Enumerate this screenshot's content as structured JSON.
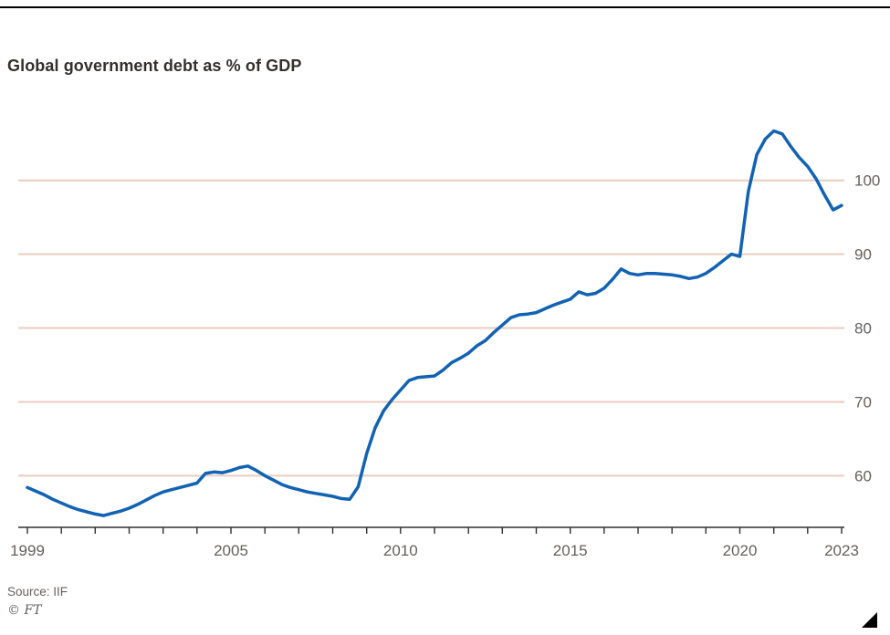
{
  "chart_data": {
    "type": "line",
    "title": "Global government debt as % of GDP",
    "xlabel": "",
    "ylabel": "",
    "xlim": [
      1999,
      2023
    ],
    "ylim": [
      53,
      108
    ],
    "yticks": [
      60,
      70,
      80,
      90,
      100
    ],
    "xticks_labeled": [
      1999,
      2005,
      2010,
      2015,
      2020,
      2023
    ],
    "xticks_minor_every_years": 1,
    "grid": "horizontal",
    "legend_position": "none",
    "series": [
      {
        "name": "Global government debt as % of GDP",
        "color": "#1262b3",
        "points": [
          [
            1999.0,
            58.4
          ],
          [
            1999.25,
            57.9
          ],
          [
            1999.5,
            57.4
          ],
          [
            1999.75,
            56.8
          ],
          [
            2000.0,
            56.3
          ],
          [
            2000.25,
            55.8
          ],
          [
            2000.5,
            55.4
          ],
          [
            2000.75,
            55.1
          ],
          [
            2001.0,
            54.8
          ],
          [
            2001.25,
            54.6
          ],
          [
            2001.5,
            54.9
          ],
          [
            2001.75,
            55.2
          ],
          [
            2002.0,
            55.6
          ],
          [
            2002.25,
            56.1
          ],
          [
            2002.5,
            56.7
          ],
          [
            2002.75,
            57.3
          ],
          [
            2003.0,
            57.8
          ],
          [
            2003.25,
            58.1
          ],
          [
            2003.5,
            58.4
          ],
          [
            2003.75,
            58.7
          ],
          [
            2004.0,
            59.0
          ],
          [
            2004.25,
            60.3
          ],
          [
            2004.5,
            60.5
          ],
          [
            2004.75,
            60.4
          ],
          [
            2005.0,
            60.7
          ],
          [
            2005.25,
            61.1
          ],
          [
            2005.5,
            61.3
          ],
          [
            2005.75,
            60.7
          ],
          [
            2006.0,
            60.0
          ],
          [
            2006.25,
            59.4
          ],
          [
            2006.5,
            58.8
          ],
          [
            2006.75,
            58.4
          ],
          [
            2007.0,
            58.1
          ],
          [
            2007.25,
            57.8
          ],
          [
            2007.5,
            57.6
          ],
          [
            2007.75,
            57.4
          ],
          [
            2008.0,
            57.2
          ],
          [
            2008.25,
            56.9
          ],
          [
            2008.5,
            56.8
          ],
          [
            2008.75,
            58.5
          ],
          [
            2009.0,
            63.0
          ],
          [
            2009.25,
            66.5
          ],
          [
            2009.5,
            68.8
          ],
          [
            2009.75,
            70.3
          ],
          [
            2010.0,
            71.6
          ],
          [
            2010.25,
            72.9
          ],
          [
            2010.5,
            73.3
          ],
          [
            2010.75,
            73.4
          ],
          [
            2011.0,
            73.5
          ],
          [
            2011.25,
            74.3
          ],
          [
            2011.5,
            75.3
          ],
          [
            2011.75,
            75.9
          ],
          [
            2012.0,
            76.6
          ],
          [
            2012.25,
            77.6
          ],
          [
            2012.5,
            78.3
          ],
          [
            2012.75,
            79.4
          ],
          [
            2013.0,
            80.4
          ],
          [
            2013.25,
            81.4
          ],
          [
            2013.5,
            81.8
          ],
          [
            2013.75,
            81.9
          ],
          [
            2014.0,
            82.1
          ],
          [
            2014.25,
            82.6
          ],
          [
            2014.5,
            83.1
          ],
          [
            2014.75,
            83.5
          ],
          [
            2015.0,
            83.9
          ],
          [
            2015.25,
            84.9
          ],
          [
            2015.5,
            84.5
          ],
          [
            2015.75,
            84.7
          ],
          [
            2016.0,
            85.4
          ],
          [
            2016.25,
            86.6
          ],
          [
            2016.5,
            88.0
          ],
          [
            2016.75,
            87.4
          ],
          [
            2017.0,
            87.2
          ],
          [
            2017.25,
            87.4
          ],
          [
            2017.5,
            87.4
          ],
          [
            2017.75,
            87.3
          ],
          [
            2018.0,
            87.2
          ],
          [
            2018.25,
            87.0
          ],
          [
            2018.5,
            86.7
          ],
          [
            2018.75,
            86.9
          ],
          [
            2019.0,
            87.4
          ],
          [
            2019.25,
            88.2
          ],
          [
            2019.5,
            89.1
          ],
          [
            2019.75,
            90.0
          ],
          [
            2020.0,
            89.7
          ],
          [
            2020.25,
            98.5
          ],
          [
            2020.5,
            103.5
          ],
          [
            2020.75,
            105.6
          ],
          [
            2021.0,
            106.7
          ],
          [
            2021.25,
            106.3
          ],
          [
            2021.5,
            104.6
          ],
          [
            2021.75,
            103.1
          ],
          [
            2022.0,
            101.9
          ],
          [
            2022.25,
            100.2
          ],
          [
            2022.5,
            98.0
          ],
          [
            2022.75,
            96.0
          ],
          [
            2023.0,
            96.6
          ]
        ]
      }
    ]
  },
  "footer": {
    "source": "Source: IIF",
    "credit": "© FT"
  },
  "colors": {
    "background": "#ffffff",
    "top_rule": "#000000",
    "grid": "#e9cdbf",
    "axis": "#33302e",
    "tick_label": "#66605c",
    "line": "#1262b3"
  }
}
